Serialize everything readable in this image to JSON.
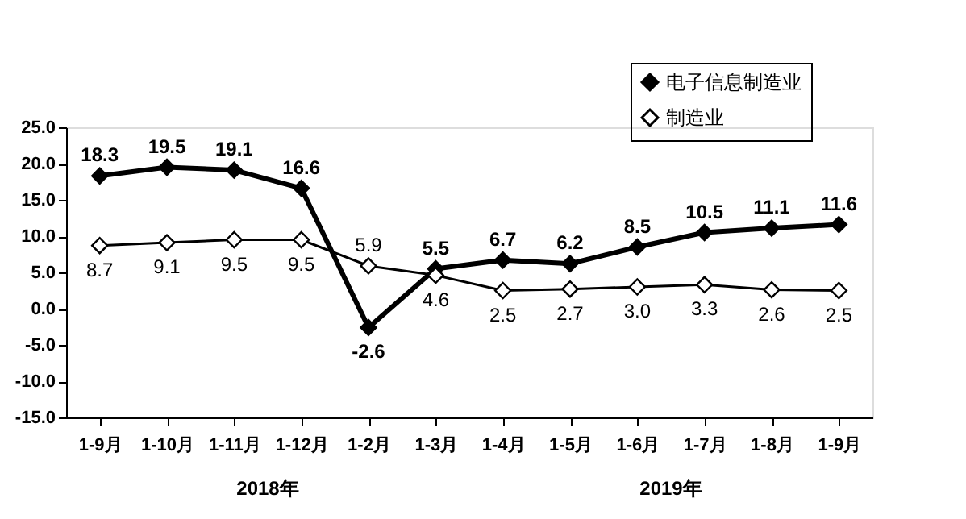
{
  "chart_data": {
    "type": "line",
    "categories": [
      "1-9月",
      "1-10月",
      "1-11月",
      "1-12月",
      "1-2月",
      "1-3月",
      "1-4月",
      "1-5月",
      "1-6月",
      "1-7月",
      "1-8月",
      "1-9月"
    ],
    "series": [
      {
        "name": "电子信息制造业",
        "color": "#000000",
        "values": [
          18.3,
          19.5,
          19.1,
          16.6,
          -2.6,
          5.5,
          6.7,
          6.2,
          8.5,
          10.5,
          11.1,
          11.6
        ],
        "value_labels": [
          "18.3",
          "19.5",
          "19.1",
          "16.6",
          "-2.6",
          "5.5",
          "6.7",
          "6.2",
          "8.5",
          "10.5",
          "11.1",
          "11.6"
        ]
      },
      {
        "name": "制造业",
        "color": "#000000",
        "values": [
          8.7,
          9.1,
          9.5,
          9.5,
          5.9,
          4.6,
          2.5,
          2.7,
          3.0,
          3.3,
          2.6,
          2.5
        ],
        "value_labels": [
          "8.7",
          "9.1",
          "9.5",
          "9.5",
          "5.9",
          "4.6",
          "2.5",
          "2.7",
          "3.0",
          "3.3",
          "2.6",
          "2.5"
        ]
      }
    ],
    "ylim": [
      -15,
      25
    ],
    "yticks": [
      {
        "value": -15,
        "label": "-15.0"
      },
      {
        "value": -10,
        "label": "-10.0"
      },
      {
        "value": -5,
        "label": "-5.0"
      },
      {
        "value": 0,
        "label": "0.0"
      },
      {
        "value": 5,
        "label": "5.0"
      },
      {
        "value": 10,
        "label": "10.0"
      },
      {
        "value": 15,
        "label": "15.0"
      },
      {
        "value": 20,
        "label": "20.0"
      },
      {
        "value": 25,
        "label": "25.0"
      }
    ],
    "annotations": [
      "2018年",
      "2019年"
    ],
    "grid": false,
    "legend": "top right",
    "marker": "diamond",
    "line_style": "solid"
  }
}
